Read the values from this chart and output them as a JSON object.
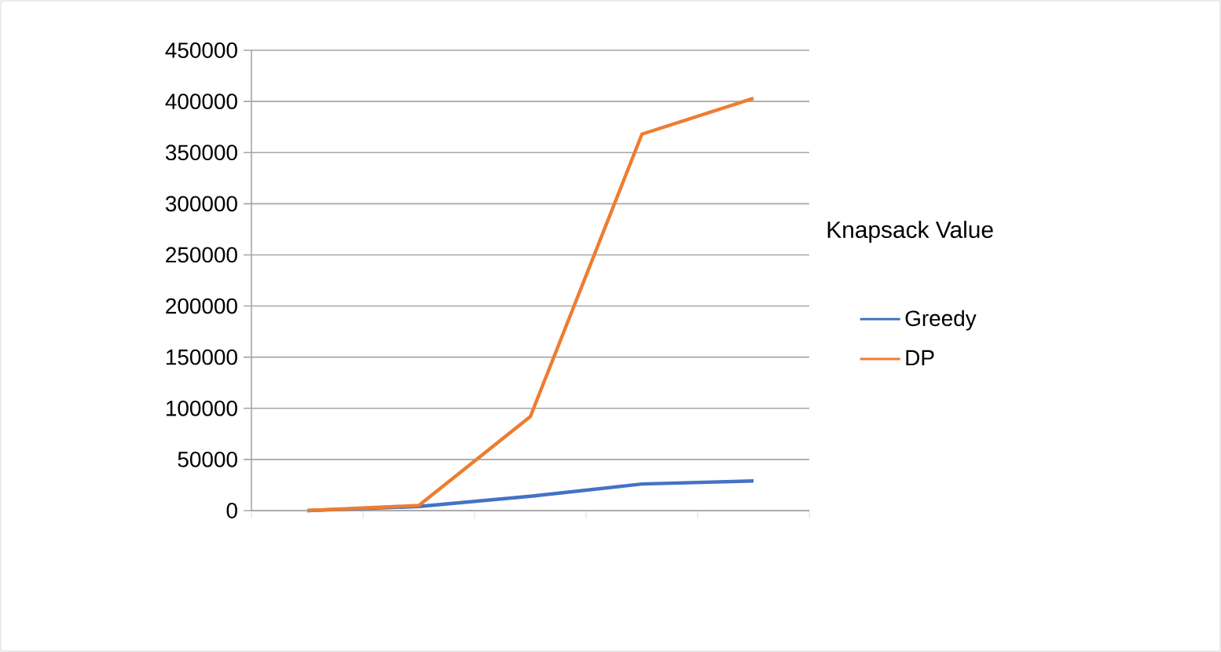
{
  "chart_data": {
    "type": "line",
    "legend_title": "Knapsack Value",
    "categories": [
      null,
      null,
      null,
      null,
      null
    ],
    "series": [
      {
        "name": "Greedy",
        "color": "#4472c4",
        "values": [
          0,
          4000,
          14000,
          26000,
          29000
        ]
      },
      {
        "name": "DP",
        "color": "#ed7d31",
        "values": [
          0,
          5000,
          92000,
          368000,
          403000
        ]
      }
    ],
    "ylim": [
      0,
      450000
    ],
    "yticks": [
      0,
      50000,
      100000,
      150000,
      200000,
      250000,
      300000,
      350000,
      400000,
      450000
    ],
    "grid": "y",
    "legend": "right",
    "marker": "none",
    "line_style": "solid"
  }
}
